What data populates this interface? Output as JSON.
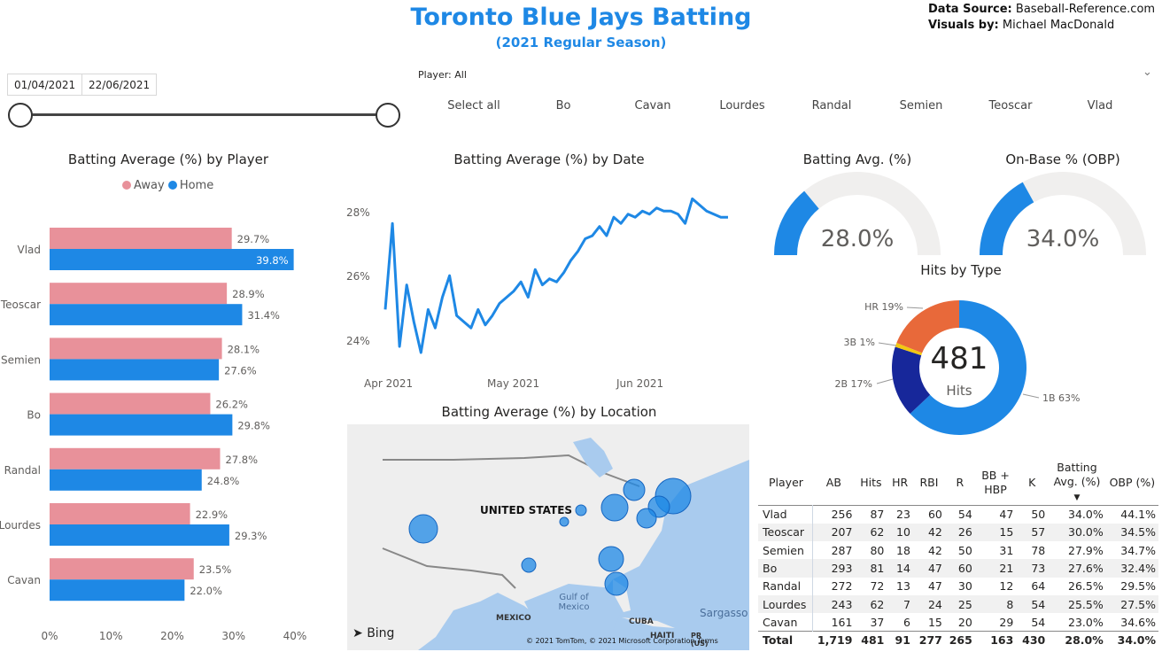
{
  "header": {
    "title": "Toronto Blue Jays Batting",
    "subtitle": "(2021 Regular Season)",
    "source_label": "Data Source:",
    "source_value": "Baseball-Reference.com",
    "visuals_label": "Visuals by:",
    "visuals_value": "Michael MacDonald"
  },
  "date_slicer": {
    "start": "01/04/2021",
    "end": "22/06/2021"
  },
  "player_slicer": {
    "label": "Player: All",
    "options": [
      "Select all",
      "Bo",
      "Cavan",
      "Lourdes",
      "Randal",
      "Semien",
      "Teoscar",
      "Vlad"
    ]
  },
  "colors": {
    "accent": "#1e88e5",
    "away": "#e8919a",
    "home": "#1e88e5",
    "hr": "#e8693a",
    "triple": "#f2c811",
    "double": "#17279a",
    "single": "#1e88e5",
    "gauge_bg": "#f0efee"
  },
  "bar_chart": {
    "title": "Batting Average (%) by Player",
    "legend": [
      "Away",
      "Home"
    ],
    "x_ticks": [
      "0%",
      "10%",
      "20%",
      "30%",
      "40%"
    ],
    "chart_data": {
      "type": "bar",
      "orientation": "horizontal",
      "categories": [
        "Vlad",
        "Teoscar",
        "Semien",
        "Bo",
        "Randal",
        "Lourdes",
        "Cavan"
      ],
      "series": [
        {
          "name": "Away",
          "values": [
            29.7,
            28.9,
            28.1,
            26.2,
            27.8,
            22.9,
            23.5
          ],
          "labels": [
            "29.7%",
            "28.9%",
            "28.1%",
            "26.2%",
            "27.8%",
            "22.9%",
            "23.5%"
          ]
        },
        {
          "name": "Home",
          "values": [
            39.8,
            31.4,
            27.6,
            29.8,
            24.8,
            29.3,
            22.0
          ],
          "labels": [
            "39.8%",
            "31.4%",
            "27.6%",
            "29.8%",
            "24.8%",
            "29.3%",
            "22.0%"
          ]
        }
      ],
      "xlim": [
        0,
        40
      ]
    }
  },
  "line_chart": {
    "title": "Batting Average (%) by Date",
    "y_ticks": [
      "28%",
      "26%",
      "24%"
    ],
    "x_ticks": [
      "Apr 2021",
      "May 2021",
      "Jun 2021"
    ],
    "chart_data": {
      "type": "line",
      "x_start": "2021-04-01",
      "x_end": "2021-06-22",
      "ylim": [
        23.6,
        28.9
      ],
      "values": [
        25.0,
        27.8,
        23.8,
        25.8,
        24.6,
        23.6,
        25.0,
        24.4,
        25.4,
        26.1,
        24.8,
        24.6,
        24.4,
        25.0,
        24.5,
        24.8,
        25.2,
        25.4,
        25.6,
        25.9,
        25.4,
        26.3,
        25.8,
        26.0,
        25.9,
        26.2,
        26.6,
        26.9,
        27.3,
        27.4,
        27.7,
        27.4,
        28.0,
        27.8,
        28.1,
        28.0,
        28.2,
        28.1,
        28.3,
        28.2,
        28.2,
        28.1,
        27.8,
        28.6,
        28.4,
        28.2,
        28.1,
        28.0,
        28.0
      ]
    }
  },
  "gauges": [
    {
      "title": "Batting Avg. (%)",
      "value": 28.0,
      "display": "28.0%",
      "max": 100
    },
    {
      "title": "On-Base % (OBP)",
      "value": 34.0,
      "display": "34.0%",
      "max": 100
    }
  ],
  "donut": {
    "title": "Hits by Type",
    "center_value": "481",
    "center_label": "Hits",
    "chart_data": {
      "type": "pie",
      "categories": [
        "1B",
        "2B",
        "3B",
        "HR"
      ],
      "values": [
        63,
        17,
        1,
        19
      ],
      "labels": [
        "1B 63%",
        "2B 17%",
        "3B 1%",
        "HR 19%"
      ]
    }
  },
  "map": {
    "title": "Batting Average (%) by Location",
    "labels": {
      "country": "UNITED STATES",
      "gulf": "Gulf of Mexico",
      "mexico": "MEXICO",
      "cuba": "CUBA",
      "haiti": "HAITI",
      "pr": "PR (US)",
      "sargasso": "Sargasso",
      "bing": "Bing",
      "copyright": "© 2021 TomTom, © 2021 Microsoft Corporation",
      "terms": "Terms"
    }
  },
  "table": {
    "headers": [
      "Player",
      "AB",
      "Hits",
      "HR",
      "RBI",
      "R",
      "BB + HBP",
      "K",
      "Batting Avg. (%)",
      "OBP (%)"
    ],
    "rows": [
      [
        "Vlad",
        "256",
        "87",
        "23",
        "60",
        "54",
        "47",
        "50",
        "34.0%",
        "44.1%"
      ],
      [
        "Teoscar",
        "207",
        "62",
        "10",
        "42",
        "26",
        "15",
        "57",
        "30.0%",
        "34.5%"
      ],
      [
        "Semien",
        "287",
        "80",
        "18",
        "42",
        "50",
        "31",
        "78",
        "27.9%",
        "34.7%"
      ],
      [
        "Bo",
        "293",
        "81",
        "14",
        "47",
        "60",
        "21",
        "73",
        "27.6%",
        "32.4%"
      ],
      [
        "Randal",
        "272",
        "72",
        "13",
        "47",
        "30",
        "12",
        "64",
        "26.5%",
        "29.5%"
      ],
      [
        "Lourdes",
        "243",
        "62",
        "7",
        "24",
        "25",
        "8",
        "54",
        "25.5%",
        "27.5%"
      ],
      [
        "Cavan",
        "161",
        "37",
        "6",
        "15",
        "20",
        "29",
        "54",
        "23.0%",
        "34.6%"
      ]
    ],
    "total": [
      "Total",
      "1,719",
      "481",
      "91",
      "277",
      "265",
      "163",
      "430",
      "28.0%",
      "34.0%"
    ]
  }
}
